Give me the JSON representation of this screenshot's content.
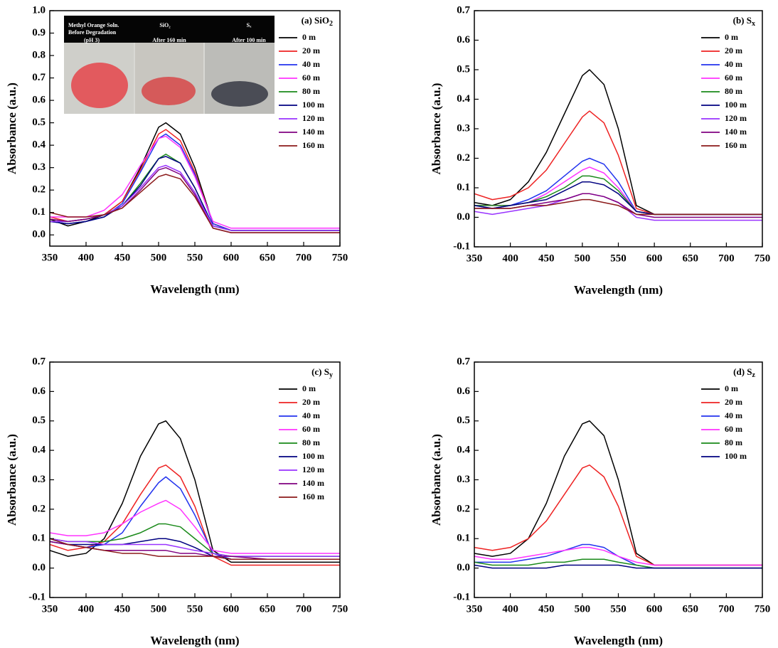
{
  "chart_data": [
    {
      "type": "line",
      "title": "(a) SiO",
      "title_subscript": "2",
      "xlabel": "Wavelength (nm)",
      "ylabel": "Absorbance (a.u.)",
      "inset_labels": [
        "Methyl  Orange Soln.",
        "Before Degradation",
        "(pH 3)",
        "SiO₂",
        "After 160 min",
        "Sₓ",
        "After 100 min"
      ],
      "legend": "upper right",
      "xlim": [
        350,
        750
      ],
      "xticks": [
        350,
        400,
        450,
        500,
        550,
        600,
        650,
        700,
        750
      ],
      "ylim": [
        -0.05,
        1.0
      ],
      "yticks": [
        {
          "value": 0,
          "label": "0.0"
        },
        0.1,
        0.2,
        0.3,
        0.4,
        0.5,
        0.6,
        0.7,
        0.8,
        0.9,
        {
          "value": 1,
          "label": "1.0"
        }
      ],
      "x": [
        350,
        375,
        400,
        425,
        450,
        475,
        500,
        510,
        530,
        550,
        575,
        600,
        650,
        700,
        750
      ],
      "series": [
        {
          "name": "0 m",
          "color": "#000000",
          "values": [
            0.07,
            0.04,
            0.06,
            0.09,
            0.15,
            0.3,
            0.48,
            0.5,
            0.45,
            0.3,
            0.05,
            0.02,
            0.02,
            0.02,
            0.02
          ]
        },
        {
          "name": "20 m",
          "color": "#ee2222",
          "values": [
            0.08,
            0.06,
            0.07,
            0.09,
            0.15,
            0.29,
            0.45,
            0.47,
            0.42,
            0.28,
            0.05,
            0.02,
            0.02,
            0.02,
            0.02
          ]
        },
        {
          "name": "40 m",
          "color": "#2233ee",
          "values": [
            0.06,
            0.05,
            0.06,
            0.08,
            0.14,
            0.28,
            0.43,
            0.45,
            0.4,
            0.27,
            0.05,
            0.02,
            0.02,
            0.02,
            0.02
          ]
        },
        {
          "name": "60 m",
          "color": "#ff33ff",
          "values": [
            0.08,
            0.08,
            0.08,
            0.11,
            0.18,
            0.31,
            0.43,
            0.44,
            0.39,
            0.26,
            0.06,
            0.03,
            0.03,
            0.03,
            0.03
          ]
        },
        {
          "name": "80 m",
          "color": "#1a8a1a",
          "values": [
            0.07,
            0.06,
            0.07,
            0.09,
            0.13,
            0.23,
            0.34,
            0.36,
            0.32,
            0.21,
            0.04,
            0.02,
            0.02,
            0.02,
            0.02
          ]
        },
        {
          "name": "100 m",
          "color": "#000080",
          "values": [
            0.06,
            0.05,
            0.06,
            0.08,
            0.13,
            0.22,
            0.34,
            0.35,
            0.32,
            0.21,
            0.04,
            0.02,
            0.02,
            0.02,
            0.02
          ]
        },
        {
          "name": "120 m",
          "color": "#9933ff",
          "values": [
            0.06,
            0.06,
            0.07,
            0.09,
            0.13,
            0.21,
            0.3,
            0.31,
            0.28,
            0.19,
            0.04,
            0.02,
            0.02,
            0.02,
            0.02
          ]
        },
        {
          "name": "140 m",
          "color": "#800080",
          "values": [
            0.07,
            0.06,
            0.07,
            0.09,
            0.12,
            0.2,
            0.29,
            0.3,
            0.27,
            0.18,
            0.03,
            0.01,
            0.01,
            0.01,
            0.01
          ]
        },
        {
          "name": "160 m",
          "color": "#8b1a1a",
          "values": [
            0.1,
            0.08,
            0.08,
            0.09,
            0.12,
            0.19,
            0.26,
            0.27,
            0.25,
            0.17,
            0.03,
            0.01,
            0.01,
            0.01,
            0.01
          ]
        }
      ]
    },
    {
      "type": "line",
      "title": "(b) S",
      "title_subscript": "x",
      "xlabel": "Wavelength (nm)",
      "ylabel": "Absorbance (a.u.)",
      "legend": "upper right",
      "xlim": [
        350,
        750
      ],
      "xticks": [
        350,
        400,
        450,
        500,
        550,
        600,
        650,
        700,
        750
      ],
      "ylim": [
        -0.1,
        0.7
      ],
      "yticks": [
        -0.1,
        {
          "value": 0,
          "label": "0.0"
        },
        0.1,
        0.2,
        0.3,
        0.4,
        0.5,
        0.6,
        0.7
      ],
      "x": [
        350,
        375,
        400,
        425,
        450,
        475,
        500,
        510,
        530,
        550,
        575,
        600,
        650,
        700,
        750
      ],
      "series": [
        {
          "name": "0 m",
          "color": "#000000",
          "values": [
            0.05,
            0.04,
            0.06,
            0.12,
            0.22,
            0.35,
            0.48,
            0.5,
            0.45,
            0.3,
            0.04,
            0.01,
            0.01,
            0.01,
            0.01
          ]
        },
        {
          "name": "20 m",
          "color": "#ee2222",
          "values": [
            0.08,
            0.06,
            0.07,
            0.1,
            0.16,
            0.25,
            0.34,
            0.36,
            0.32,
            0.21,
            0.03,
            0.01,
            0.01,
            0.01,
            0.01
          ]
        },
        {
          "name": "40 m",
          "color": "#2233ee",
          "values": [
            0.04,
            0.03,
            0.04,
            0.06,
            0.09,
            0.14,
            0.19,
            0.2,
            0.18,
            0.12,
            0.02,
            0.01,
            0.01,
            0.01,
            0.01
          ]
        },
        {
          "name": "60 m",
          "color": "#ff33ff",
          "values": [
            0.04,
            0.04,
            0.04,
            0.05,
            0.08,
            0.12,
            0.16,
            0.17,
            0.15,
            0.1,
            0.02,
            0.01,
            0.01,
            0.01,
            0.01
          ]
        },
        {
          "name": "80 m",
          "color": "#1a8a1a",
          "values": [
            0.04,
            0.04,
            0.04,
            0.05,
            0.07,
            0.1,
            0.14,
            0.14,
            0.13,
            0.09,
            0.02,
            0.01,
            0.01,
            0.01,
            0.01
          ]
        },
        {
          "name": "100 m",
          "color": "#000080",
          "values": [
            0.04,
            0.03,
            0.04,
            0.05,
            0.06,
            0.09,
            0.12,
            0.12,
            0.11,
            0.08,
            0.02,
            0.01,
            0.01,
            0.01,
            0.01
          ]
        },
        {
          "name": "120 m",
          "color": "#9933ff",
          "values": [
            0.02,
            0.01,
            0.02,
            0.03,
            0.04,
            0.06,
            0.08,
            0.08,
            0.07,
            0.05,
            0.0,
            -0.01,
            -0.01,
            -0.01,
            -0.01
          ]
        },
        {
          "name": "140 m",
          "color": "#800080",
          "values": [
            0.03,
            0.03,
            0.03,
            0.04,
            0.05,
            0.06,
            0.08,
            0.08,
            0.07,
            0.05,
            0.01,
            0.0,
            0.0,
            0.0,
            0.0
          ]
        },
        {
          "name": "160 m",
          "color": "#8b1a1a",
          "values": [
            0.03,
            0.03,
            0.03,
            0.04,
            0.04,
            0.05,
            0.06,
            0.06,
            0.05,
            0.04,
            0.01,
            0.01,
            0.01,
            0.01,
            0.01
          ]
        }
      ]
    },
    {
      "type": "line",
      "title": "(c) S",
      "title_subscript": "y",
      "xlabel": "Wavelength (nm)",
      "ylabel": "Absorbance (a.u.)",
      "legend": "upper right",
      "xlim": [
        350,
        750
      ],
      "xticks": [
        350,
        400,
        450,
        500,
        550,
        600,
        650,
        700,
        750
      ],
      "ylim": [
        -0.1,
        0.7
      ],
      "yticks": [
        -0.1,
        {
          "value": 0,
          "label": "0.0"
        },
        0.1,
        0.2,
        0.3,
        0.4,
        0.5,
        0.6,
        0.7
      ],
      "x": [
        350,
        375,
        400,
        425,
        450,
        475,
        500,
        510,
        530,
        550,
        575,
        600,
        650,
        700,
        750
      ],
      "series": [
        {
          "name": "0 m",
          "color": "#000000",
          "values": [
            0.06,
            0.04,
            0.05,
            0.1,
            0.22,
            0.38,
            0.49,
            0.5,
            0.44,
            0.3,
            0.06,
            0.02,
            0.02,
            0.02,
            0.02
          ]
        },
        {
          "name": "20 m",
          "color": "#ee2222",
          "values": [
            0.08,
            0.06,
            0.07,
            0.09,
            0.15,
            0.25,
            0.34,
            0.35,
            0.31,
            0.21,
            0.04,
            0.01,
            0.01,
            0.01,
            0.01
          ]
        },
        {
          "name": "40 m",
          "color": "#2233ee",
          "values": [
            0.1,
            0.08,
            0.07,
            0.08,
            0.12,
            0.21,
            0.29,
            0.31,
            0.27,
            0.18,
            0.05,
            0.03,
            0.03,
            0.03,
            0.03
          ]
        },
        {
          "name": "60 m",
          "color": "#ff33ff",
          "values": [
            0.12,
            0.11,
            0.11,
            0.12,
            0.15,
            0.19,
            0.22,
            0.23,
            0.2,
            0.14,
            0.06,
            0.05,
            0.05,
            0.05,
            0.05
          ]
        },
        {
          "name": "80 m",
          "color": "#1a8a1a",
          "values": [
            0.1,
            0.09,
            0.09,
            0.09,
            0.1,
            0.12,
            0.15,
            0.15,
            0.14,
            0.1,
            0.05,
            0.04,
            0.04,
            0.04,
            0.04
          ]
        },
        {
          "name": "100 m",
          "color": "#000080",
          "values": [
            0.09,
            0.08,
            0.08,
            0.08,
            0.08,
            0.09,
            0.1,
            0.1,
            0.09,
            0.07,
            0.04,
            0.03,
            0.03,
            0.03,
            0.03
          ]
        },
        {
          "name": "120 m",
          "color": "#9933ff",
          "values": [
            0.1,
            0.09,
            0.09,
            0.08,
            0.08,
            0.08,
            0.08,
            0.08,
            0.07,
            0.06,
            0.05,
            0.04,
            0.04,
            0.04,
            0.04
          ]
        },
        {
          "name": "140 m",
          "color": "#800080",
          "values": [
            0.09,
            0.08,
            0.07,
            0.06,
            0.06,
            0.06,
            0.06,
            0.06,
            0.05,
            0.05,
            0.04,
            0.04,
            0.03,
            0.03,
            0.03
          ]
        },
        {
          "name": "160 m",
          "color": "#8b1a1a",
          "values": [
            0.1,
            0.08,
            0.07,
            0.06,
            0.05,
            0.05,
            0.04,
            0.04,
            0.04,
            0.04,
            0.04,
            0.03,
            0.03,
            0.03,
            0.03
          ]
        }
      ]
    },
    {
      "type": "line",
      "title": "(d) S",
      "title_subscript": "z",
      "xlabel": "Wavelength (nm)",
      "ylabel": "Absorbance (a.u.)",
      "legend": "upper right",
      "xlim": [
        350,
        750
      ],
      "xticks": [
        350,
        400,
        450,
        500,
        550,
        600,
        650,
        700,
        750
      ],
      "ylim": [
        -0.1,
        0.7
      ],
      "yticks": [
        -0.1,
        {
          "value": 0,
          "label": "0.0"
        },
        0.1,
        0.2,
        0.3,
        0.4,
        0.5,
        0.6,
        0.7
      ],
      "x": [
        350,
        375,
        400,
        425,
        450,
        475,
        500,
        510,
        530,
        550,
        575,
        600,
        650,
        700,
        750
      ],
      "series": [
        {
          "name": "0 m",
          "color": "#000000",
          "values": [
            0.05,
            0.04,
            0.05,
            0.1,
            0.22,
            0.38,
            0.49,
            0.5,
            0.45,
            0.3,
            0.05,
            0.01,
            0.01,
            0.01,
            0.01
          ]
        },
        {
          "name": "20 m",
          "color": "#ee2222",
          "values": [
            0.07,
            0.06,
            0.07,
            0.1,
            0.16,
            0.25,
            0.34,
            0.35,
            0.31,
            0.21,
            0.04,
            0.01,
            0.01,
            0.01,
            0.01
          ]
        },
        {
          "name": "40 m",
          "color": "#2233ee",
          "values": [
            0.02,
            0.02,
            0.02,
            0.03,
            0.04,
            0.06,
            0.08,
            0.08,
            0.07,
            0.04,
            0.01,
            0.0,
            0.0,
            0.0,
            0.0
          ]
        },
        {
          "name": "60 m",
          "color": "#ff33ff",
          "values": [
            0.04,
            0.03,
            0.03,
            0.04,
            0.05,
            0.06,
            0.07,
            0.07,
            0.06,
            0.04,
            0.02,
            0.01,
            0.01,
            0.01,
            0.01
          ]
        },
        {
          "name": "80 m",
          "color": "#1a8a1a",
          "values": [
            0.02,
            0.01,
            0.01,
            0.01,
            0.02,
            0.02,
            0.03,
            0.03,
            0.03,
            0.02,
            0.01,
            0.0,
            0.0,
            0.0,
            0.0
          ]
        },
        {
          "name": "100 m",
          "color": "#000080",
          "values": [
            0.01,
            0.0,
            0.0,
            0.0,
            0.0,
            0.01,
            0.01,
            0.01,
            0.01,
            0.01,
            0.0,
            0.0,
            0.0,
            0.0,
            0.0
          ]
        }
      ]
    }
  ]
}
